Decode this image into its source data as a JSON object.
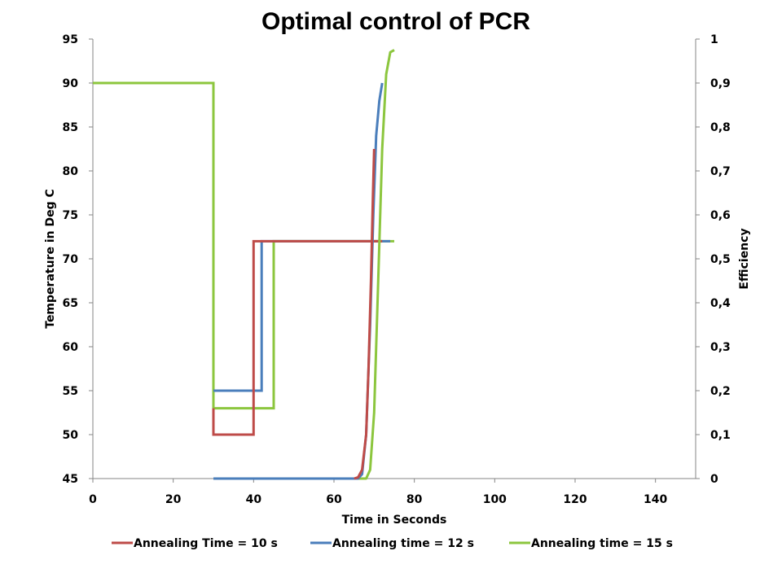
{
  "chart_data": {
    "type": "line",
    "title": "Optimal control of PCR",
    "xlabel": "Time in Seconds",
    "ylabel": "Temperature in Deg C",
    "y2label": "Efficiency",
    "xlim": [
      0,
      150
    ],
    "ylim": [
      45,
      95
    ],
    "y2lim": [
      0,
      1
    ],
    "x_ticks": [
      0,
      20,
      40,
      60,
      80,
      100,
      120,
      140
    ],
    "y_ticks": [
      45,
      50,
      55,
      60,
      65,
      70,
      75,
      80,
      85,
      90,
      95
    ],
    "y2_ticks": [
      "0",
      "0,1",
      "0,2",
      "0,3",
      "0,4",
      "0,5",
      "0,6",
      "0,7",
      "0,8",
      "0,9",
      "1"
    ],
    "grid": false,
    "legend_position": "bottom",
    "legend": [
      "Annealing Time = 10 s",
      "Annealing time = 12 s",
      "Annealing time = 15 s"
    ],
    "colors": [
      "#be4b48",
      "#4a7ebb",
      "#8cc63e"
    ],
    "series": [
      {
        "name": "Annealing Time = 10 s",
        "color": "#be4b48",
        "temperature": [
          [
            30,
            53
          ],
          [
            30,
            50
          ],
          [
            40,
            50
          ],
          [
            40,
            72
          ],
          [
            72,
            72
          ]
        ],
        "efficiency": [
          [
            65,
            0
          ],
          [
            66,
            0.003
          ],
          [
            67,
            0.02
          ],
          [
            68,
            0.1
          ],
          [
            68.6,
            0.25
          ],
          [
            69.2,
            0.45
          ],
          [
            69.7,
            0.65
          ],
          [
            70,
            0.75
          ]
        ]
      },
      {
        "name": "Annealing time = 12 s",
        "color": "#4a7ebb",
        "temperature": [
          [
            30,
            55
          ],
          [
            42,
            55
          ],
          [
            42,
            72
          ],
          [
            74,
            72
          ]
        ],
        "efficiency": [
          [
            30,
            0
          ],
          [
            66,
            0
          ],
          [
            67,
            0.01
          ],
          [
            68,
            0.1
          ],
          [
            69,
            0.35
          ],
          [
            69.8,
            0.6
          ],
          [
            70.5,
            0.78
          ],
          [
            71.3,
            0.86
          ],
          [
            72,
            0.9
          ]
        ]
      },
      {
        "name": "Annealing time = 15 s",
        "color": "#8cc63e",
        "temperature": [
          [
            0,
            90
          ],
          [
            30,
            90
          ],
          [
            30,
            53
          ],
          [
            45,
            53
          ],
          [
            45,
            72
          ],
          [
            75,
            72
          ]
        ],
        "efficiency": [
          [
            30,
            0
          ],
          [
            68,
            0
          ],
          [
            69,
            0.02
          ],
          [
            70,
            0.15
          ],
          [
            71,
            0.45
          ],
          [
            72,
            0.75
          ],
          [
            73,
            0.92
          ],
          [
            74,
            0.97
          ],
          [
            75,
            0.975
          ]
        ]
      }
    ]
  }
}
